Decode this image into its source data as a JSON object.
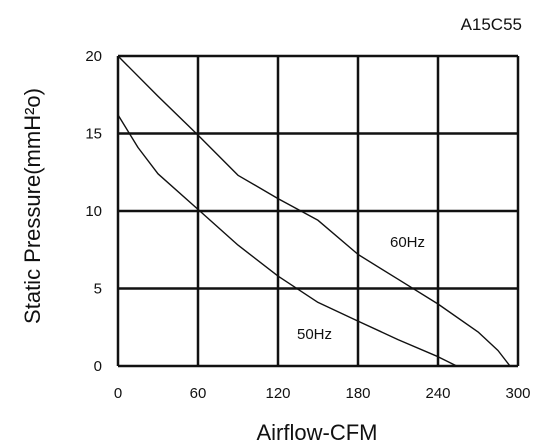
{
  "chart_data": {
    "type": "line",
    "model_label": "A15C55",
    "xlabel": "Airflow-CFM",
    "ylabel": "Static Pressure(mmH²o)",
    "xlim": [
      0,
      300
    ],
    "ylim": [
      0,
      20
    ],
    "x_ticks": [
      "0",
      "60",
      "120",
      "180",
      "240",
      "300"
    ],
    "y_ticks": [
      "0",
      "5",
      "10",
      "15",
      "20"
    ],
    "grid": true,
    "series": [
      {
        "name": "60Hz",
        "x": [
          0,
          30,
          60,
          90,
          120,
          150,
          180,
          210,
          240,
          270,
          285,
          294
        ],
        "y": [
          20,
          17.4,
          14.9,
          12.3,
          10.8,
          9.4,
          7.2,
          5.6,
          4.0,
          2.2,
          1.0,
          0
        ]
      },
      {
        "name": "50Hz",
        "x": [
          0,
          15,
          30,
          60,
          90,
          120,
          150,
          180,
          210,
          240,
          254
        ],
        "y": [
          16.2,
          14.1,
          12.4,
          10.1,
          7.8,
          5.8,
          4.1,
          2.9,
          1.7,
          0.6,
          0
        ]
      }
    ]
  }
}
